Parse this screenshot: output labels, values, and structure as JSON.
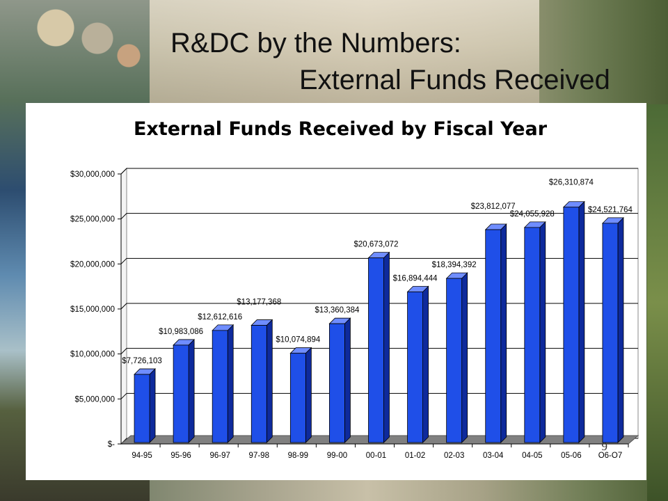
{
  "slide": {
    "title_line1": "R&DC by the Numbers:",
    "title_line2": "External Funds Received",
    "page_number": "9"
  },
  "colors": {
    "bar_front": "#1f4fe8",
    "bar_top": "#6f8dff",
    "bar_side": "#0e2a9c",
    "floor": "#808080"
  },
  "chart_data": {
    "type": "bar",
    "title": "External Funds Received by Fiscal Year",
    "xlabel": "",
    "ylabel": "",
    "ylim": [
      0,
      30000000
    ],
    "grid": true,
    "legend": "none",
    "y_ticks": [
      0,
      5000000,
      10000000,
      15000000,
      20000000,
      25000000,
      30000000
    ],
    "y_tick_labels": [
      "$-",
      "$5,000,000",
      "$10,000,000",
      "$15,000,000",
      "$20,000,000",
      "$25,000,000",
      "$30,000,000"
    ],
    "categories": [
      "94-95",
      "95-96",
      "96-97",
      "97-98",
      "98-99",
      "99-00",
      "00-01",
      "01-02",
      "02-03",
      "03-04",
      "04-05",
      "05-06",
      "O6-O7"
    ],
    "values": [
      7726103,
      10983086,
      12612616,
      13177368,
      10074894,
      13360384,
      20673072,
      16894444,
      18394392,
      23812077,
      24055928,
      26310874,
      24521764
    ],
    "data_labels": [
      "$7,726,103",
      "$10,983,086",
      "$12,612,616",
      "$13,177,368",
      "$10,074,894",
      "$13,360,384",
      "$20,673,072",
      "$16,894,444",
      "$18,394,392",
      "$23,812,077",
      "$24,055,928",
      "$26,310,874",
      "$24,521,764"
    ]
  }
}
